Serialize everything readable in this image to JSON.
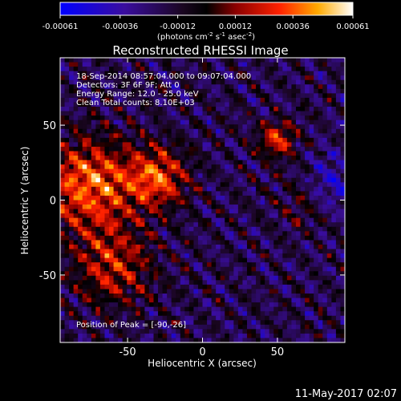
{
  "colorbar": {
    "tick_labels": [
      "-0.00061",
      "-0.00036",
      "-0.00012",
      "0.00012",
      "0.00036",
      "0.00061"
    ],
    "tick_values": [
      -0.00061,
      -0.00036,
      -0.00012,
      0.00012,
      0.00036,
      0.00061
    ],
    "range": [
      -0.00061,
      0.00061
    ],
    "units_prefix": "(photons cm",
    "units_exp1": "-2",
    "units_mid": " s",
    "units_exp2": "-1",
    "units_mid2": " asec",
    "units_exp3": "-2",
    "units_suffix": ")",
    "colormap": [
      "#0000ff",
      "#3a0d9e",
      "#1a0620",
      "#000000",
      "#8b0000",
      "#ff2200",
      "#ffaa00",
      "#ffffff"
    ]
  },
  "chart_data": {
    "type": "heatmap",
    "title": "Reconstructed RHESSI Image",
    "xlabel": "Heliocentric X (arcsec)",
    "ylabel": "Heliocentric Y (arcsec)",
    "xlim": [
      -95,
      95
    ],
    "ylim": [
      -95,
      95
    ],
    "xticks": [
      -50,
      0,
      50
    ],
    "yticks": [
      50,
      0,
      -50
    ],
    "xtick_labels": [
      "-50",
      "0",
      "50"
    ],
    "ytick_labels": [
      "50",
      "0",
      "-50"
    ],
    "grid": false,
    "info_lines": [
      "18-Sep-2014 08:57:04.000 to 09:07:04.000",
      "Detectors: 3F 6F 9F; Att 0",
      "Energy Range: 12.0 - 25.0 keV",
      "Clean    Total counts: 8.10E+03"
    ],
    "peak_label": "Position of Peak = [-90,-26]",
    "peak_position": [
      -90,
      -26
    ]
  },
  "timestamp": "11-May-2017 02:07"
}
